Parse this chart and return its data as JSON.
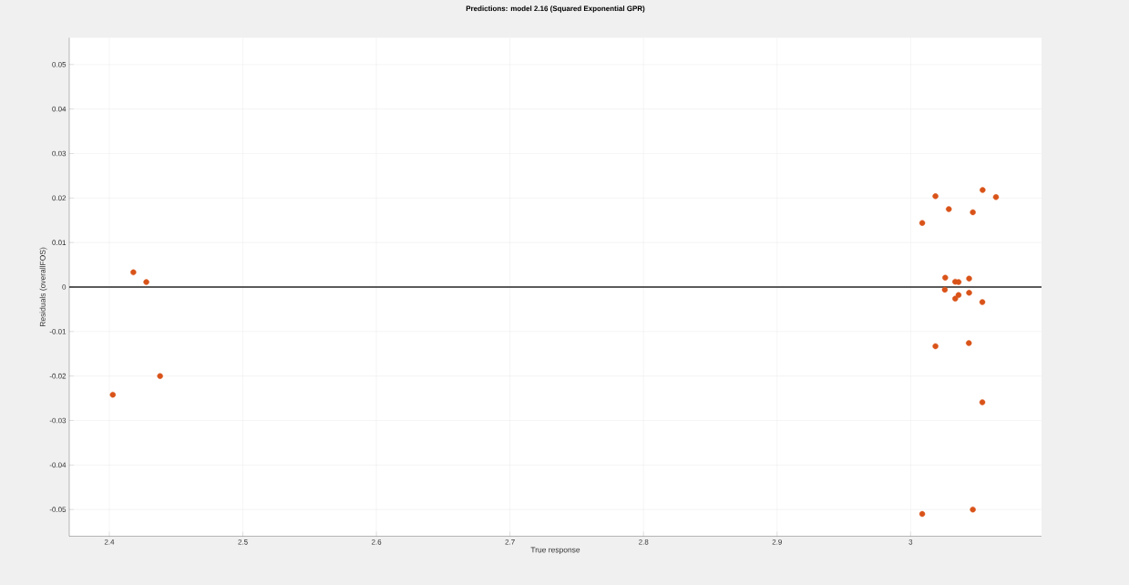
{
  "chart_data": {
    "type": "scatter",
    "title": "Predictions: model 2.16 (Squared Exponential GPR)",
    "xlabel": "True response",
    "ylabel": "Residuals (overallFOS)",
    "x": [
      2.4026,
      2.418,
      2.4277,
      2.438,
      3.0186,
      3.0539,
      3.0639,
      3.0286,
      3.0466,
      3.0087,
      3.0259,
      3.0334,
      3.0359,
      3.0438,
      3.0256,
      3.0359,
      3.0334,
      3.0438,
      3.0537,
      3.0186,
      3.0436,
      3.0537,
      3.0087,
      3.0466
    ],
    "values": [
      -0.0242,
      0.0033,
      0.0011,
      -0.02,
      0.0204,
      0.0218,
      0.0202,
      0.0175,
      0.0168,
      0.0144,
      0.0021,
      0.0012,
      0.0011,
      0.0019,
      -0.0006,
      -0.0018,
      -0.0026,
      -0.0013,
      -0.0034,
      -0.0133,
      -0.0126,
      -0.0259,
      -0.051,
      -0.05
    ],
    "color": "#d95319",
    "marker": "circle",
    "xlim": [
      2.37,
      3.098
    ],
    "ylim": [
      -0.056,
      0.056
    ],
    "xticks": [
      2.4,
      2.5,
      2.6,
      2.7,
      2.8,
      2.9,
      3
    ],
    "yticks": [
      -0.05,
      -0.04,
      -0.03,
      -0.02,
      -0.01,
      0,
      0.01,
      0.02,
      0.03,
      0.04,
      0.05
    ],
    "grid": true,
    "ref_lines": [
      {
        "axis": "y",
        "value": 0,
        "color": "#262626"
      }
    ]
  }
}
